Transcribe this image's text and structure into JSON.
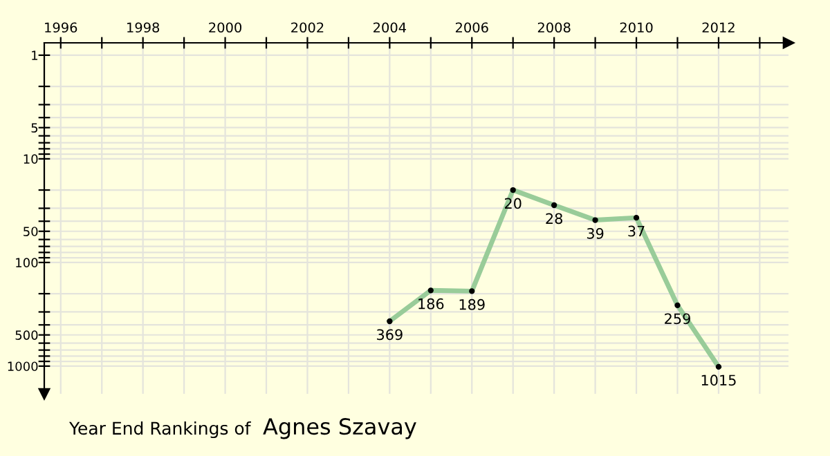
{
  "chart_data": {
    "type": "line",
    "title": "Year End Rankings of",
    "subtitle": "Agnes Szavay",
    "x": [
      2004,
      2005,
      2006,
      2007,
      2008,
      2009,
      2010,
      2011,
      2012
    ],
    "series": [
      {
        "color": "#99cc99",
        "values": [
          369,
          186,
          189,
          20,
          28,
          39,
          37,
          259,
          1015
        ]
      }
    ],
    "data_labels": true,
    "marker": "circle",
    "line_style": "solid",
    "log": "y",
    "grid": true,
    "xlim": [
      1995.6,
      2013.7
    ],
    "ylim": [
      1850,
      0.76
    ],
    "xticks": [
      1996,
      {
        "value": 1997,
        "label": null
      },
      1998,
      {
        "value": 1999,
        "label": null
      },
      2000,
      {
        "value": 2001,
        "label": null
      },
      2002,
      {
        "value": 2003,
        "label": null
      },
      2004,
      {
        "value": 2005,
        "label": null
      },
      2006,
      {
        "value": 2007,
        "label": null
      },
      2008,
      {
        "value": 2009,
        "label": null
      },
      2010,
      {
        "value": 2011,
        "label": null
      },
      2012,
      {
        "value": 2013,
        "label": null
      }
    ],
    "yticks": [
      1,
      {
        "value": 2,
        "label": null
      },
      {
        "value": 3,
        "label": null
      },
      {
        "value": 4,
        "label": null
      },
      5,
      {
        "value": 6,
        "label": null
      },
      {
        "value": 7,
        "label": null
      },
      {
        "value": 8,
        "label": null
      },
      {
        "value": 9,
        "label": null
      },
      10,
      {
        "value": 20,
        "label": null
      },
      {
        "value": 30,
        "label": null
      },
      {
        "value": 40,
        "label": null
      },
      50,
      {
        "value": 60,
        "label": null
      },
      {
        "value": 70,
        "label": null
      },
      {
        "value": 80,
        "label": null
      },
      {
        "value": 90,
        "label": null
      },
      100,
      {
        "value": 200,
        "label": null
      },
      {
        "value": 300,
        "label": null
      },
      {
        "value": 400,
        "label": null
      },
      500,
      {
        "value": 600,
        "label": null
      },
      {
        "value": 700,
        "label": null
      },
      {
        "value": 800,
        "label": null
      },
      {
        "value": 900,
        "label": null
      },
      1000
    ]
  }
}
